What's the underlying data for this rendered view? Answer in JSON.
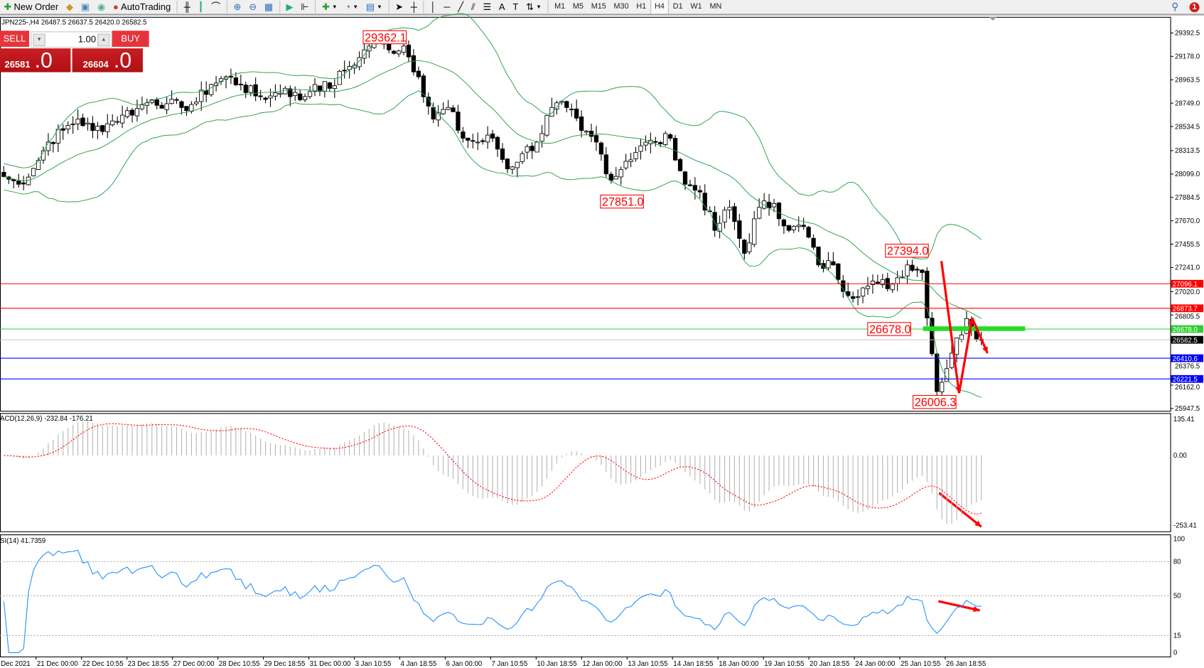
{
  "toolbar": {
    "new_order_label": "New Order",
    "autotrading_label": "AutoTrading",
    "timeframes": [
      "M1",
      "M5",
      "M15",
      "M30",
      "H1",
      "H4",
      "D1",
      "W1",
      "MN"
    ],
    "active_timeframe": "H4",
    "notification_count": "1"
  },
  "chart": {
    "title": "JPN225-,H4  26487.5 26637.5 26420.0 26582.5",
    "symbol": "JPN225-",
    "timeframe": "H4",
    "ohlc": {
      "open": 26487.5,
      "high": 26637.5,
      "low": 26420.0,
      "close": 26582.5
    }
  },
  "one_click": {
    "sell_label": "SELL",
    "buy_label": "BUY",
    "lot": "1.00",
    "sell_price_small": "26581",
    "sell_price_big": ".0",
    "buy_price_small": "26604",
    "buy_price_big": ".0"
  },
  "price_axis": [
    "29392.5",
    "29178.0",
    "28963.5",
    "28749.0",
    "28534.5",
    "28313.5",
    "28099.0",
    "27884.5",
    "27670.0",
    "27455.5",
    "27241.0",
    "27020.0",
    "26805.5",
    "26376.5",
    "26162.0",
    "25947.5"
  ],
  "price_range": [
    25947.5,
    29392.5
  ],
  "levels": [
    {
      "value": "27096.1",
      "color": "#ff0000"
    },
    {
      "value": "26873.7",
      "color": "#ff0000"
    },
    {
      "value": "26678.0",
      "color": "#33cc33"
    },
    {
      "value": "26582.5",
      "color": "#000000"
    },
    {
      "value": "26410.6",
      "color": "#0000ff"
    },
    {
      "value": "26221.5",
      "color": "#0000ff"
    }
  ],
  "price_labels": [
    "29362.1",
    "27851.0",
    "27394.0",
    "26678.0",
    "26006.3"
  ],
  "price_path": [
    28075,
    28005,
    28150,
    28392,
    28500,
    28603,
    28498,
    28560,
    28639,
    28700,
    28780,
    28744,
    28709,
    28760,
    28920,
    28991,
    28920,
    28815,
    28815,
    28885,
    28780,
    28920,
    28885,
    29050,
    29167,
    29343,
    29238,
    29273,
    28991,
    28603,
    28709,
    28427,
    28392,
    28427,
    28146,
    28286,
    28392,
    28709,
    28709,
    28498,
    28392,
    28040,
    28216,
    28357,
    28392,
    28427,
    28005,
    27934,
    27582,
    27793,
    27371,
    27793,
    27828,
    27582,
    27617,
    27265,
    27265,
    26983,
    27054,
    27089,
    27089,
    27265,
    27195,
    26103,
    26455,
    26772,
    26582.5
  ],
  "macd": {
    "title": "ACD(12,26,9) -232.84 -176.21",
    "axis": [
      "135.41",
      "0.00",
      "-253.41"
    ],
    "range": [
      -253.41,
      135.41
    ]
  },
  "rsi": {
    "title": "SI(14) 41.7359",
    "axis": [
      "100",
      "80",
      "50",
      "15",
      "0"
    ],
    "levels": [
      80,
      50,
      15
    ]
  },
  "time_axis": [
    "Dec 2021",
    "21 Dec 00:00",
    "22 Dec 10:55",
    "23 Dec 18:55",
    "27 Dec 00:00",
    "28 Dec 10:55",
    "29 Dec 18:55",
    "31 Dec 00:00",
    "3 Jan 10:55",
    "4 Jan 18:55",
    "6 Jan 00:00",
    "7 Jan 10:55",
    "10 Jan 18:55",
    "12 Jan 00:00",
    "13 Jan 10:55",
    "14 Jan 18:55",
    "18 Jan 00:00",
    "19 Jan 10:55",
    "20 Jan 18:55",
    "24 Jan 00:00",
    "25 Jan 10:55",
    "26 Jan 18:55"
  ],
  "colors": {
    "bands": "#2ca24c",
    "rsi": "#1e90ff",
    "signal": "#ff0000",
    "histogram": "#b4b4b4",
    "annotation": "#ff0000"
  }
}
